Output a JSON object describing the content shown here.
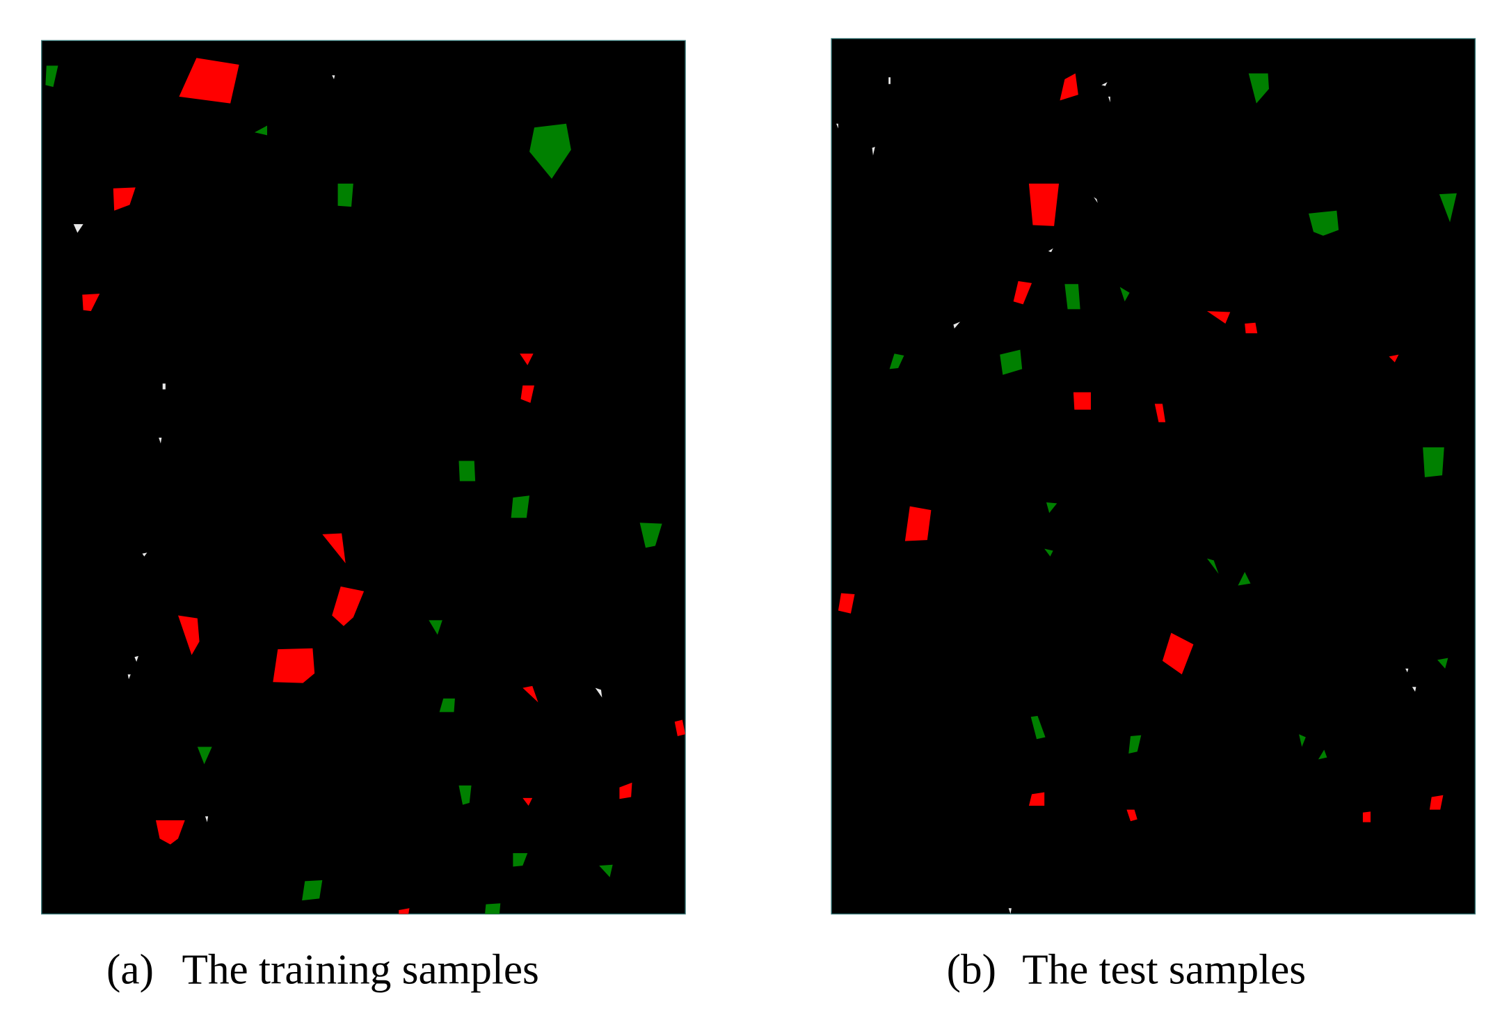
{
  "panels": [
    {
      "label": "(a)",
      "caption": "The training samples"
    },
    {
      "label": "(b)",
      "caption": "The test samples"
    }
  ]
}
